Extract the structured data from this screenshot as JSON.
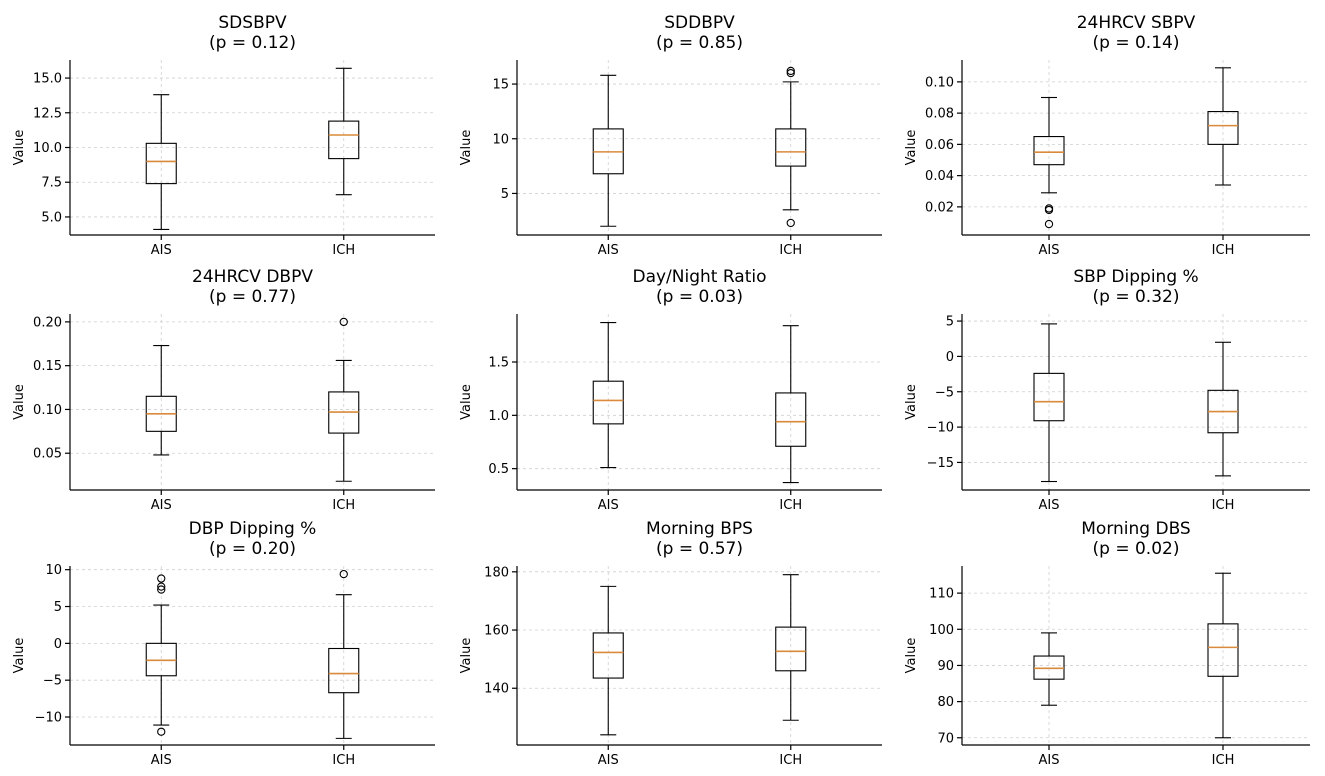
{
  "figure": {
    "ylabel": "Value"
  },
  "chart_data": [
    {
      "type": "box",
      "title": "SDSBPV",
      "subtitle": "(p = 0.12)",
      "ylabel": "Value",
      "categories": [
        "AIS",
        "ICH"
      ],
      "ylim": [
        3.7,
        16.3
      ],
      "yticks": [
        5.0,
        7.5,
        10.0,
        12.5,
        15.0
      ],
      "ytick_labels": [
        "5.0",
        "7.5",
        "10.0",
        "12.5",
        "15.0"
      ],
      "boxes": [
        {
          "label": "AIS",
          "whislo": 4.1,
          "q1": 7.4,
          "med": 9.0,
          "q3": 10.3,
          "whishi": 13.8,
          "fliers": []
        },
        {
          "label": "ICH",
          "whislo": 6.6,
          "q1": 9.2,
          "med": 10.9,
          "q3": 11.9,
          "whishi": 15.7,
          "fliers": []
        }
      ]
    },
    {
      "type": "box",
      "title": "SDDBPV",
      "subtitle": "(p = 0.85)",
      "ylabel": "Value",
      "categories": [
        "AIS",
        "ICH"
      ],
      "ylim": [
        1.2,
        17.2
      ],
      "yticks": [
        5,
        10,
        15
      ],
      "ytick_labels": [
        "5",
        "10",
        "15"
      ],
      "boxes": [
        {
          "label": "AIS",
          "whislo": 2.0,
          "q1": 6.8,
          "med": 8.8,
          "q3": 10.9,
          "whishi": 15.8,
          "fliers": []
        },
        {
          "label": "ICH",
          "whislo": 3.5,
          "q1": 7.5,
          "med": 8.8,
          "q3": 10.9,
          "whishi": 15.2,
          "fliers": [
            2.3,
            16.0,
            16.2
          ]
        }
      ]
    },
    {
      "type": "box",
      "title": "24HRCV SBPV",
      "subtitle": "(p = 0.14)",
      "ylabel": "Value",
      "categories": [
        "AIS",
        "ICH"
      ],
      "ylim": [
        0.002,
        0.114
      ],
      "yticks": [
        0.02,
        0.04,
        0.06,
        0.08,
        0.1
      ],
      "ytick_labels": [
        "0.02",
        "0.04",
        "0.06",
        "0.08",
        "0.10"
      ],
      "boxes": [
        {
          "label": "AIS",
          "whislo": 0.029,
          "q1": 0.047,
          "med": 0.055,
          "q3": 0.065,
          "whishi": 0.09,
          "fliers": [
            0.009,
            0.018,
            0.019
          ]
        },
        {
          "label": "ICH",
          "whislo": 0.034,
          "q1": 0.06,
          "med": 0.072,
          "q3": 0.081,
          "whishi": 0.109,
          "fliers": []
        }
      ]
    },
    {
      "type": "box",
      "title": "24HRCV DBPV",
      "subtitle": "(p = 0.77)",
      "ylabel": "Value",
      "categories": [
        "AIS",
        "ICH"
      ],
      "ylim": [
        0.008,
        0.209
      ],
      "yticks": [
        0.05,
        0.1,
        0.15,
        0.2
      ],
      "ytick_labels": [
        "0.05",
        "0.10",
        "0.15",
        "0.20"
      ],
      "boxes": [
        {
          "label": "AIS",
          "whislo": 0.048,
          "q1": 0.075,
          "med": 0.095,
          "q3": 0.115,
          "whishi": 0.173,
          "fliers": []
        },
        {
          "label": "ICH",
          "whislo": 0.018,
          "q1": 0.073,
          "med": 0.097,
          "q3": 0.12,
          "whishi": 0.156,
          "fliers": [
            0.2
          ]
        }
      ]
    },
    {
      "type": "box",
      "title": "Day/Night Ratio",
      "subtitle": "(p = 0.03)",
      "ylabel": "Value",
      "categories": [
        "AIS",
        "ICH"
      ],
      "ylim": [
        0.3,
        1.95
      ],
      "yticks": [
        0.5,
        1.0,
        1.5
      ],
      "ytick_labels": [
        "0.5",
        "1.0",
        "1.5"
      ],
      "boxes": [
        {
          "label": "AIS",
          "whislo": 0.51,
          "q1": 0.92,
          "med": 1.14,
          "q3": 1.32,
          "whishi": 1.87,
          "fliers": []
        },
        {
          "label": "ICH",
          "whislo": 0.37,
          "q1": 0.71,
          "med": 0.94,
          "q3": 1.21,
          "whishi": 1.84,
          "fliers": []
        }
      ]
    },
    {
      "type": "box",
      "title": "SBP Dipping %",
      "subtitle": "(p = 0.32)",
      "ylabel": "Value",
      "categories": [
        "AIS",
        "ICH"
      ],
      "ylim": [
        -18.9,
        6.0
      ],
      "yticks": [
        -15,
        -10,
        -5,
        0,
        5
      ],
      "ytick_labels": [
        "−15",
        "−10",
        "−5",
        "0",
        "5"
      ],
      "boxes": [
        {
          "label": "AIS",
          "whislo": -17.7,
          "q1": -9.1,
          "med": -6.4,
          "q3": -2.4,
          "whishi": 4.6,
          "fliers": []
        },
        {
          "label": "ICH",
          "whislo": -16.9,
          "q1": -10.8,
          "med": -7.8,
          "q3": -4.8,
          "whishi": 2.0,
          "fliers": []
        }
      ]
    },
    {
      "type": "box",
      "title": "DBP Dipping %",
      "subtitle": "(p = 0.20)",
      "ylabel": "Value",
      "categories": [
        "AIS",
        "ICH"
      ],
      "ylim": [
        -13.8,
        10.5
      ],
      "yticks": [
        -10,
        -5,
        0,
        5,
        10
      ],
      "ytick_labels": [
        "−10",
        "−5",
        "0",
        "5",
        "10"
      ],
      "boxes": [
        {
          "label": "AIS",
          "whislo": -11.1,
          "q1": -4.4,
          "med": -2.3,
          "q3": 0.0,
          "whishi": 5.2,
          "fliers": [
            -12.0,
            7.3,
            7.7,
            8.8
          ]
        },
        {
          "label": "ICH",
          "whislo": -12.9,
          "q1": -6.7,
          "med": -4.1,
          "q3": -0.7,
          "whishi": 6.6,
          "fliers": [
            9.4
          ]
        }
      ]
    },
    {
      "type": "box",
      "title": "Morning BPS",
      "subtitle": "(p = 0.57)",
      "ylabel": "Value",
      "categories": [
        "AIS",
        "ICH"
      ],
      "ylim": [
        120.5,
        182.0
      ],
      "yticks": [
        140,
        160,
        180
      ],
      "ytick_labels": [
        "140",
        "160",
        "180"
      ],
      "boxes": [
        {
          "label": "AIS",
          "whislo": 124.0,
          "q1": 143.5,
          "med": 152.3,
          "q3": 159.0,
          "whishi": 175.0,
          "fliers": []
        },
        {
          "label": "ICH",
          "whislo": 129.0,
          "q1": 146.0,
          "med": 152.7,
          "q3": 161.0,
          "whishi": 179.0,
          "fliers": []
        }
      ]
    },
    {
      "type": "box",
      "title": "Morning DBS",
      "subtitle": "(p = 0.02)",
      "ylabel": "Value",
      "categories": [
        "AIS",
        "ICH"
      ],
      "ylim": [
        68.0,
        117.5
      ],
      "yticks": [
        70,
        80,
        90,
        100,
        110
      ],
      "ytick_labels": [
        "70",
        "80",
        "90",
        "100",
        "110"
      ],
      "boxes": [
        {
          "label": "AIS",
          "whislo": 79.0,
          "q1": 86.2,
          "med": 89.2,
          "q3": 92.6,
          "whishi": 99.0,
          "fliers": []
        },
        {
          "label": "ICH",
          "whislo": 70.0,
          "q1": 87.0,
          "med": 95.0,
          "q3": 101.5,
          "whishi": 115.5,
          "fliers": []
        }
      ]
    }
  ]
}
